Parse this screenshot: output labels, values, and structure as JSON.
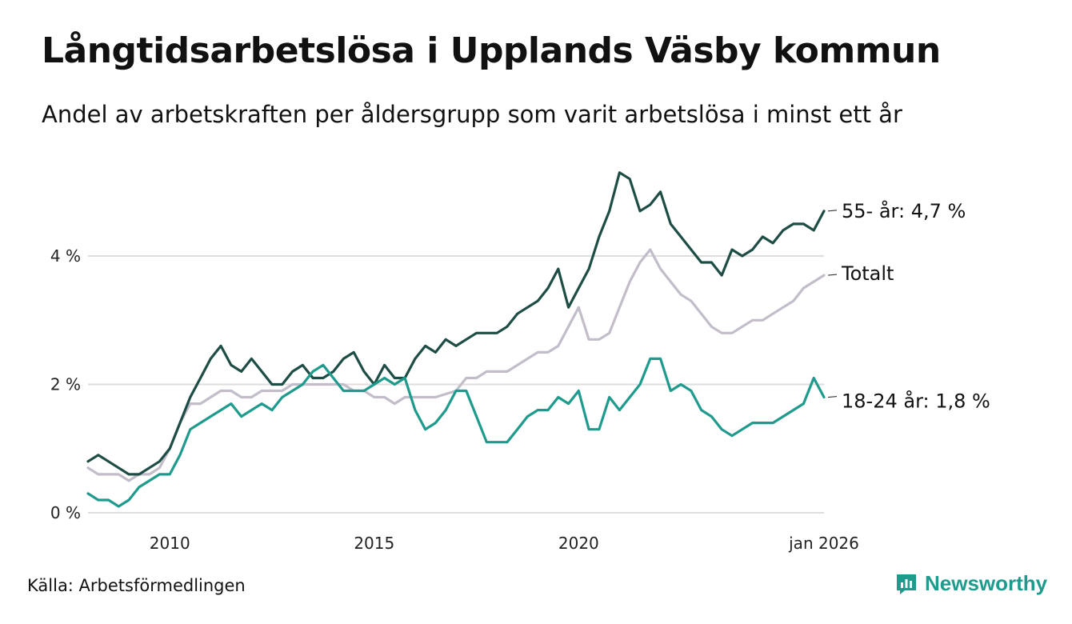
{
  "header": {
    "title": "Långtidsarbetslösa i Upplands Väsby kommun",
    "subtitle": "Andel av arbetskraften per åldersgrupp som varit arbetslösa i minst ett år"
  },
  "footer": {
    "source": "Källa: Arbetsförmedlingen",
    "brand": "Newsworthy",
    "brand_color": "#1f9b8e"
  },
  "chart_data": {
    "type": "line",
    "title": "Långtidsarbetslösa i Upplands Väsby kommun",
    "xlabel": "",
    "ylabel": "",
    "xlim": [
      2008.0,
      2026.0
    ],
    "ylim": [
      0,
      5.4
    ],
    "yticks": [
      0,
      2,
      4
    ],
    "ytick_labels": [
      "0 %",
      "2 %",
      "4 %"
    ],
    "xticks": [
      2010,
      2015,
      2020,
      2026.0
    ],
    "xtick_labels": [
      "2010",
      "2015",
      "2020",
      "jan 2026"
    ],
    "grid": true,
    "series": [
      {
        "name": "Totalt",
        "label": "Totalt",
        "color": "#c2bdc9",
        "x": [
          2008.0,
          2008.25,
          2008.5,
          2008.75,
          2009.0,
          2009.25,
          2009.5,
          2009.75,
          2010.0,
          2010.25,
          2010.5,
          2010.75,
          2011.0,
          2011.25,
          2011.5,
          2011.75,
          2012.0,
          2012.25,
          2012.5,
          2012.75,
          2013.0,
          2013.25,
          2013.5,
          2013.75,
          2014.0,
          2014.25,
          2014.5,
          2014.75,
          2015.0,
          2015.25,
          2015.5,
          2015.75,
          2016.0,
          2016.5,
          2017.0,
          2017.25,
          2017.5,
          2017.75,
          2018.0,
          2018.25,
          2018.5,
          2018.75,
          2019.0,
          2019.25,
          2019.5,
          2019.75,
          2020.0,
          2020.25,
          2020.5,
          2020.75,
          2021.0,
          2021.25,
          2021.5,
          2021.75,
          2022.0,
          2022.25,
          2022.5,
          2022.75,
          2023.0,
          2023.25,
          2023.5,
          2023.75,
          2024.0,
          2024.25,
          2024.5,
          2024.75,
          2025.0,
          2025.25,
          2025.5,
          2025.75,
          2026.0
        ],
        "values": [
          0.7,
          0.6,
          0.6,
          0.6,
          0.5,
          0.6,
          0.6,
          0.7,
          1.0,
          1.4,
          1.7,
          1.7,
          1.8,
          1.9,
          1.9,
          1.8,
          1.8,
          1.9,
          1.9,
          1.9,
          2.0,
          2.0,
          2.0,
          2.0,
          2.0,
          2.0,
          1.9,
          1.9,
          1.8,
          1.8,
          1.7,
          1.8,
          1.8,
          1.8,
          1.9,
          2.1,
          2.1,
          2.2,
          2.2,
          2.2,
          2.3,
          2.4,
          2.5,
          2.5,
          2.6,
          2.9,
          3.2,
          2.7,
          2.7,
          2.8,
          3.2,
          3.6,
          3.9,
          4.1,
          3.8,
          3.6,
          3.4,
          3.3,
          3.1,
          2.9,
          2.8,
          2.8,
          2.9,
          3.0,
          3.0,
          3.1,
          3.2,
          3.3,
          3.5,
          3.6,
          3.7
        ]
      },
      {
        "name": "55- år",
        "label": "55- år: 4,7 %",
        "color": "#1e4d45",
        "x": [
          2008.0,
          2008.25,
          2008.5,
          2008.75,
          2009.0,
          2009.25,
          2009.5,
          2009.75,
          2010.0,
          2010.25,
          2010.5,
          2010.75,
          2011.0,
          2011.25,
          2011.5,
          2011.75,
          2012.0,
          2012.25,
          2012.5,
          2012.75,
          2013.0,
          2013.25,
          2013.5,
          2013.75,
          2014.0,
          2014.25,
          2014.5,
          2014.75,
          2015.0,
          2015.25,
          2015.5,
          2015.75,
          2016.0,
          2016.25,
          2016.5,
          2016.75,
          2017.0,
          2017.25,
          2017.5,
          2017.75,
          2018.0,
          2018.25,
          2018.5,
          2018.75,
          2019.0,
          2019.25,
          2019.5,
          2019.75,
          2020.0,
          2020.25,
          2020.5,
          2020.75,
          2021.0,
          2021.25,
          2021.5,
          2021.75,
          2022.0,
          2022.25,
          2022.5,
          2022.75,
          2023.0,
          2023.25,
          2023.5,
          2023.75,
          2024.0,
          2024.25,
          2024.5,
          2024.75,
          2025.0,
          2025.25,
          2025.5,
          2025.75,
          2026.0
        ],
        "values": [
          0.8,
          0.9,
          0.8,
          0.7,
          0.6,
          0.6,
          0.7,
          0.8,
          1.0,
          1.4,
          1.8,
          2.1,
          2.4,
          2.6,
          2.3,
          2.2,
          2.4,
          2.2,
          2.0,
          2.0,
          2.2,
          2.3,
          2.1,
          2.1,
          2.2,
          2.4,
          2.5,
          2.2,
          2.0,
          2.3,
          2.1,
          2.1,
          2.4,
          2.6,
          2.5,
          2.7,
          2.6,
          2.7,
          2.8,
          2.8,
          2.8,
          2.9,
          3.1,
          3.2,
          3.3,
          3.5,
          3.8,
          3.2,
          3.5,
          3.8,
          4.3,
          4.7,
          5.3,
          5.2,
          4.7,
          4.8,
          5.0,
          4.5,
          4.3,
          4.1,
          3.9,
          3.9,
          3.7,
          4.1,
          4.0,
          4.1,
          4.3,
          4.2,
          4.4,
          4.5,
          4.5,
          4.4,
          4.7
        ]
      },
      {
        "name": "18-24 år",
        "label": "18-24 år: 1,8 %",
        "color": "#1f9b8e",
        "x": [
          2008.0,
          2008.25,
          2008.5,
          2008.75,
          2009.0,
          2009.25,
          2009.5,
          2009.75,
          2010.0,
          2010.25,
          2010.5,
          2010.75,
          2011.0,
          2011.25,
          2011.5,
          2011.75,
          2012.0,
          2012.25,
          2012.5,
          2012.75,
          2013.0,
          2013.25,
          2013.5,
          2013.75,
          2014.0,
          2014.25,
          2014.5,
          2014.75,
          2015.0,
          2015.25,
          2015.5,
          2015.75,
          2016.0,
          2016.25,
          2016.5,
          2016.75,
          2017.0,
          2017.25,
          2017.5,
          2017.75,
          2018.0,
          2018.25,
          2018.5,
          2018.75,
          2019.0,
          2019.25,
          2019.5,
          2019.75,
          2020.0,
          2020.25,
          2020.5,
          2020.75,
          2021.0,
          2021.25,
          2021.5,
          2021.75,
          2022.0,
          2022.25,
          2022.5,
          2022.75,
          2023.0,
          2023.25,
          2023.5,
          2023.75,
          2024.0,
          2024.25,
          2024.5,
          2024.75,
          2025.0,
          2025.25,
          2025.5,
          2025.75,
          2026.0
        ],
        "values": [
          0.3,
          0.2,
          0.2,
          0.1,
          0.2,
          0.4,
          0.5,
          0.6,
          0.6,
          0.9,
          1.3,
          1.4,
          1.5,
          1.6,
          1.7,
          1.5,
          1.6,
          1.7,
          1.6,
          1.8,
          1.9,
          2.0,
          2.2,
          2.3,
          2.1,
          1.9,
          1.9,
          1.9,
          2.0,
          2.1,
          2.0,
          2.1,
          1.6,
          1.3,
          1.4,
          1.6,
          1.9,
          1.9,
          1.5,
          1.1,
          1.1,
          1.1,
          1.3,
          1.5,
          1.6,
          1.6,
          1.8,
          1.7,
          1.9,
          1.3,
          1.3,
          1.8,
          1.6,
          1.8,
          2.0,
          2.4,
          2.4,
          1.9,
          2.0,
          1.9,
          1.6,
          1.5,
          1.3,
          1.2,
          1.3,
          1.4,
          1.4,
          1.4,
          1.5,
          1.6,
          1.7,
          2.1,
          1.8
        ]
      }
    ]
  }
}
